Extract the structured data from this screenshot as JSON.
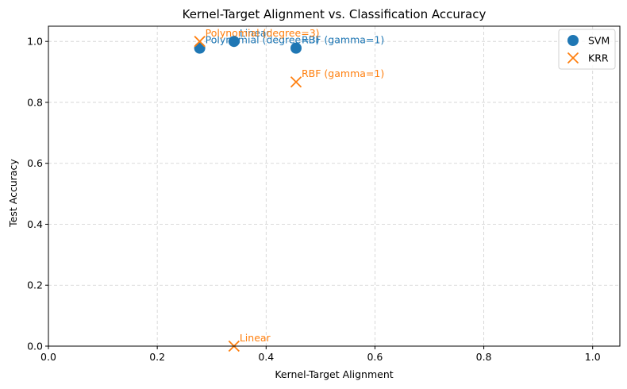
{
  "chart_data": {
    "type": "scatter",
    "title": "Kernel-Target Alignment vs. Classification Accuracy",
    "xlabel": "Kernel-Target Alignment",
    "ylabel": "Test Accuracy",
    "xlim": [
      0.0,
      1.05
    ],
    "ylim": [
      0.0,
      1.05
    ],
    "xticks": [
      "0.0",
      "0.2",
      "0.4",
      "0.6",
      "0.8",
      "1.0"
    ],
    "yticks": [
      "0.0",
      "0.2",
      "0.4",
      "0.6",
      "0.8",
      "1.0"
    ],
    "grid": true,
    "legend_position": "top-right",
    "series": [
      {
        "name": "SVM",
        "marker": "circle",
        "color": "#1f77b4",
        "points": [
          {
            "label": "Linear",
            "x": 0.341,
            "y": 1.0
          },
          {
            "label": "Polynomial (degree=3)",
            "x": 0.278,
            "y": 0.978
          },
          {
            "label": "RBF (gamma=1)",
            "x": 0.455,
            "y": 0.978
          }
        ]
      },
      {
        "name": "KRR",
        "marker": "x",
        "color": "#ff7f0e",
        "points": [
          {
            "label": "Linear",
            "x": 0.341,
            "y": 0.0
          },
          {
            "label": "Polynomial (degree=3)",
            "x": 0.278,
            "y": 1.0
          },
          {
            "label": "RBF (gamma=1)",
            "x": 0.455,
            "y": 0.867
          }
        ]
      }
    ]
  }
}
